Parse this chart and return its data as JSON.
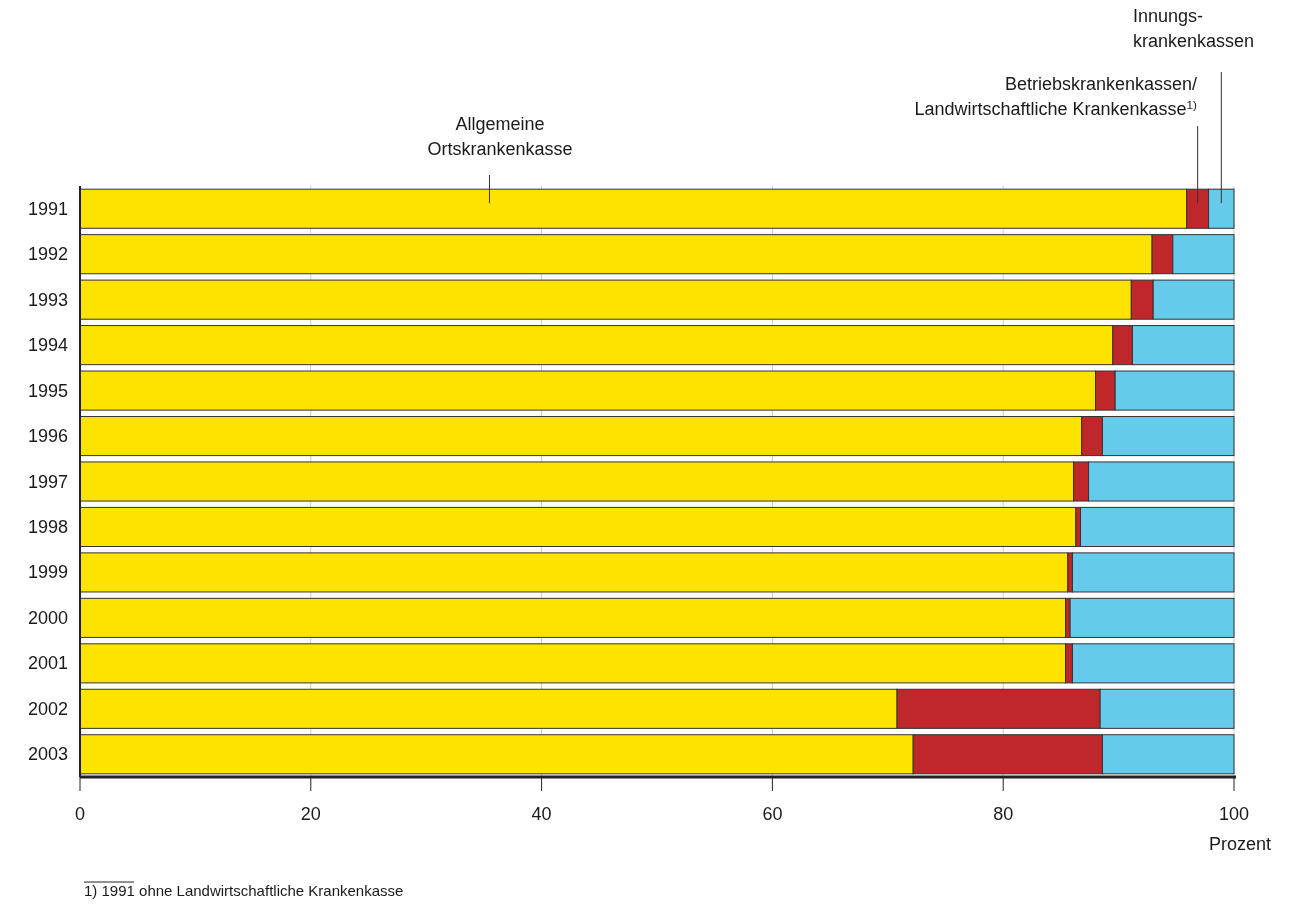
{
  "chart_data": {
    "type": "bar",
    "orientation": "horizontal",
    "stacked": true,
    "xlabel": "Prozent",
    "categories": [
      "1991",
      "1992",
      "1993",
      "1994",
      "1995",
      "1996",
      "1997",
      "1998",
      "1999",
      "2000",
      "2001",
      "2002",
      "2003"
    ],
    "series": [
      {
        "name": "Allgemeine\nOrtskrankenkasse",
        "color": "#ffe300",
        "values": [
          95.9,
          92.9,
          91.1,
          89.5,
          88.0,
          86.8,
          86.1,
          86.3,
          85.6,
          85.4,
          85.4,
          70.8,
          72.2
        ]
      },
      {
        "name": "Betriebskrankenkassen/\nLandwirtschaftliche Krankenkasse$^{1)}$",
        "color": "#c0272b",
        "values": [
          1.9,
          1.8,
          1.9,
          1.7,
          1.7,
          1.8,
          1.3,
          0.4,
          0.4,
          0.4,
          0.6,
          17.6,
          16.4
        ]
      },
      {
        "name": "Innungs-\nkrankenkassen",
        "color": "#66cbea",
        "values": [
          2.2,
          5.3,
          7.0,
          8.8,
          10.3,
          11.4,
          12.6,
          13.3,
          14.0,
          14.2,
          14.0,
          11.6,
          11.4
        ]
      }
    ],
    "xlim": [
      0,
      100
    ],
    "xticks": [
      0,
      20,
      40,
      60,
      80,
      100
    ],
    "grid": "x",
    "legend": false,
    "annotations": [
      "1) 1991 ohne Landwirtschaftliche Krankenkasse"
    ]
  }
}
